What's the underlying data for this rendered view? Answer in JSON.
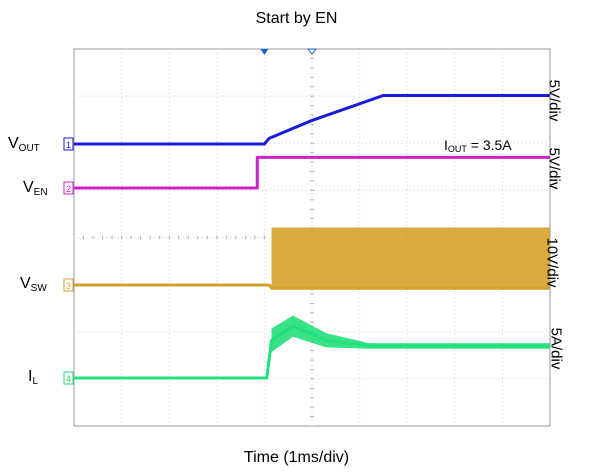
{
  "chart_data": {
    "type": "line",
    "title": "Start by EN",
    "xlabel": "Time (1ms/div)",
    "x_divisions": 10,
    "y_divisions": 8,
    "grid": true,
    "annotation": {
      "base": "I",
      "sub": "OUT",
      "rest": " = 3.5A"
    },
    "channels": [
      {
        "key": "vout",
        "label_base": "V",
        "label_sub": "OUT",
        "marker": "1",
        "scale": "5V/div",
        "color": "#1a1adc",
        "points": [
          [
            0,
            0
          ],
          [
            4.0,
            0
          ],
          [
            4.1,
            0.12
          ],
          [
            5.0,
            0.5
          ],
          [
            6.5,
            1.03
          ],
          [
            10,
            1.03
          ]
        ]
      },
      {
        "key": "ven",
        "label_base": "V",
        "label_sub": "EN",
        "marker": "2",
        "scale": "5V/div",
        "color": "#cc22cc",
        "points": [
          [
            0,
            0
          ],
          [
            3.85,
            0
          ],
          [
            3.85,
            0.65
          ],
          [
            10,
            0.65
          ]
        ]
      },
      {
        "key": "vsw",
        "label_base": "V",
        "label_sub": "SW",
        "marker": "3",
        "scale": "10V/div",
        "color": "#d4a12a",
        "points": [
          [
            0,
            0
          ],
          [
            4.1,
            0
          ],
          [
            4.15,
            -0.07
          ],
          [
            10,
            -0.07
          ]
        ],
        "switching_band": {
          "x_start": 4.15,
          "x_end": 10,
          "low": -0.07,
          "high": 1.22
        }
      },
      {
        "key": "il",
        "label_base": "I",
        "label_sub": "L",
        "marker": "4",
        "scale": "5A/div",
        "color": "#22e07a",
        "points": [
          [
            0,
            0
          ],
          [
            4.05,
            0
          ],
          [
            4.15,
            0.8
          ],
          [
            4.6,
            1.1
          ],
          [
            5.3,
            0.8
          ],
          [
            6.2,
            0.68
          ],
          [
            10,
            0.68
          ]
        ],
        "ripple": [
          [
            4.15,
            0.5
          ],
          [
            4.6,
            0.45
          ],
          [
            5.3,
            0.3
          ],
          [
            6.2,
            0.12
          ],
          [
            10,
            0.12
          ]
        ]
      }
    ]
  }
}
